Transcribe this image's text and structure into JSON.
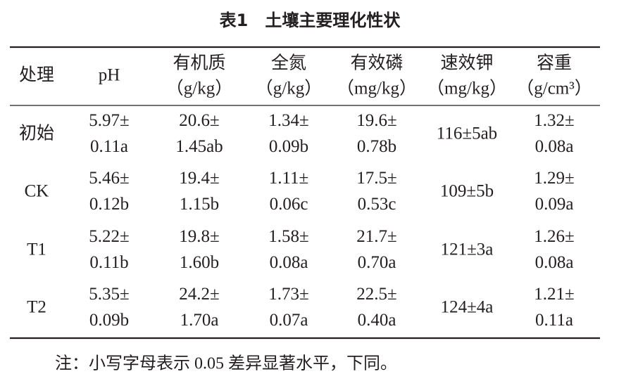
{
  "title": "表1　土壤主要理化性状",
  "table": {
    "header": [
      {
        "name": "处理"
      },
      {
        "name": "pH"
      },
      {
        "name": "有机质",
        "unit": "（g/kg）"
      },
      {
        "name": "全氮",
        "unit": "（g/kg）"
      },
      {
        "name": "有效磷",
        "unit": "（mg/kg）"
      },
      {
        "name": "速效钾",
        "unit": "（mg/kg）"
      },
      {
        "name": "容重",
        "unit": "（g/cm³）"
      }
    ],
    "rows": [
      {
        "label": "初始",
        "cells": [
          [
            "5.97±",
            "0.11a"
          ],
          [
            "20.6±",
            "1.45ab"
          ],
          [
            "1.34±",
            "0.09b"
          ],
          [
            "19.6±",
            "0.78b"
          ],
          [
            "116±5ab"
          ],
          [
            "1.32±",
            "0.08a"
          ]
        ]
      },
      {
        "label": "CK",
        "cells": [
          [
            "5.46±",
            "0.12b"
          ],
          [
            "19.4±",
            "1.15b"
          ],
          [
            "1.11±",
            "0.06c"
          ],
          [
            "17.5±",
            "0.53c"
          ],
          [
            "109±5b"
          ],
          [
            "1.29±",
            "0.09a"
          ]
        ]
      },
      {
        "label": "T1",
        "cells": [
          [
            "5.22±",
            "0.11b"
          ],
          [
            "19.8±",
            "1.60b"
          ],
          [
            "1.58±",
            "0.08a"
          ],
          [
            "21.7±",
            "0.70a"
          ],
          [
            "121±3a"
          ],
          [
            "1.26±",
            "0.08a"
          ]
        ]
      },
      {
        "label": "T2",
        "cells": [
          [
            "5.35±",
            "0.09b"
          ],
          [
            "24.2±",
            "1.70a"
          ],
          [
            "1.73±",
            "0.07a"
          ],
          [
            "22.5±",
            "0.40a"
          ],
          [
            "124±4a"
          ],
          [
            "1.21±",
            "0.11a"
          ]
        ]
      }
    ]
  },
  "note": "注：小写字母表示 0.05 差异显著水平，下同。"
}
